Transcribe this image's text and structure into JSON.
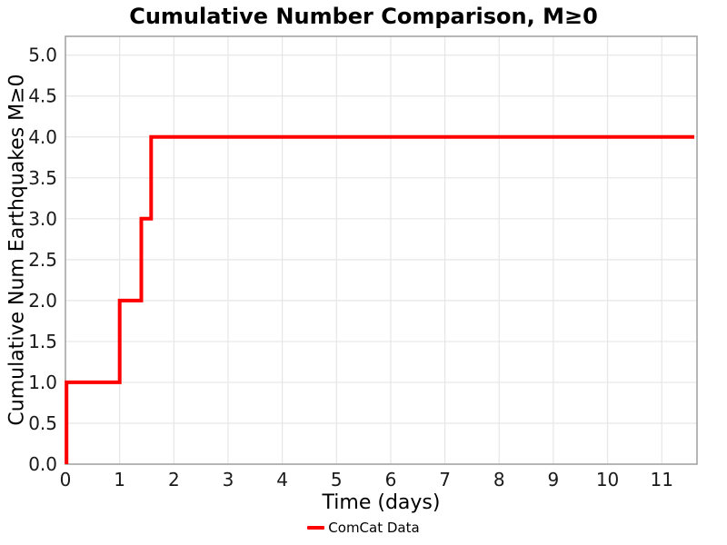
{
  "chart_data": {
    "type": "line",
    "subtype": "step-post",
    "title": "Cumulative Number Comparison, M≥0",
    "xlabel": "Time (days)",
    "ylabel": "Cumulative Num Earthquakes M≥0",
    "xlim": [
      0,
      11.65
    ],
    "ylim": [
      0,
      5.23
    ],
    "xticks": [
      0,
      1,
      2,
      3,
      4,
      5,
      6,
      7,
      8,
      9,
      10,
      11
    ],
    "yticks": [
      0,
      0.5,
      1,
      1.5,
      2,
      2.5,
      3,
      3.5,
      4,
      4.5,
      5
    ],
    "grid": true,
    "grid_color": "#e6e6e6",
    "spine_color": "#9e9e9e",
    "series": [
      {
        "name": "ComCat Data",
        "color": "#ff0000",
        "line_width": 4,
        "points": [
          [
            0.02,
            0
          ],
          [
            0.02,
            1
          ],
          [
            1.0,
            1
          ],
          [
            1.0,
            2
          ],
          [
            1.4,
            2
          ],
          [
            1.4,
            3
          ],
          [
            1.58,
            3
          ],
          [
            1.58,
            4
          ],
          [
            11.6,
            4
          ]
        ]
      }
    ],
    "legend": {
      "position": "bottom-center",
      "entries": [
        {
          "label": "ComCat Data",
          "color": "#ff0000"
        }
      ]
    }
  }
}
